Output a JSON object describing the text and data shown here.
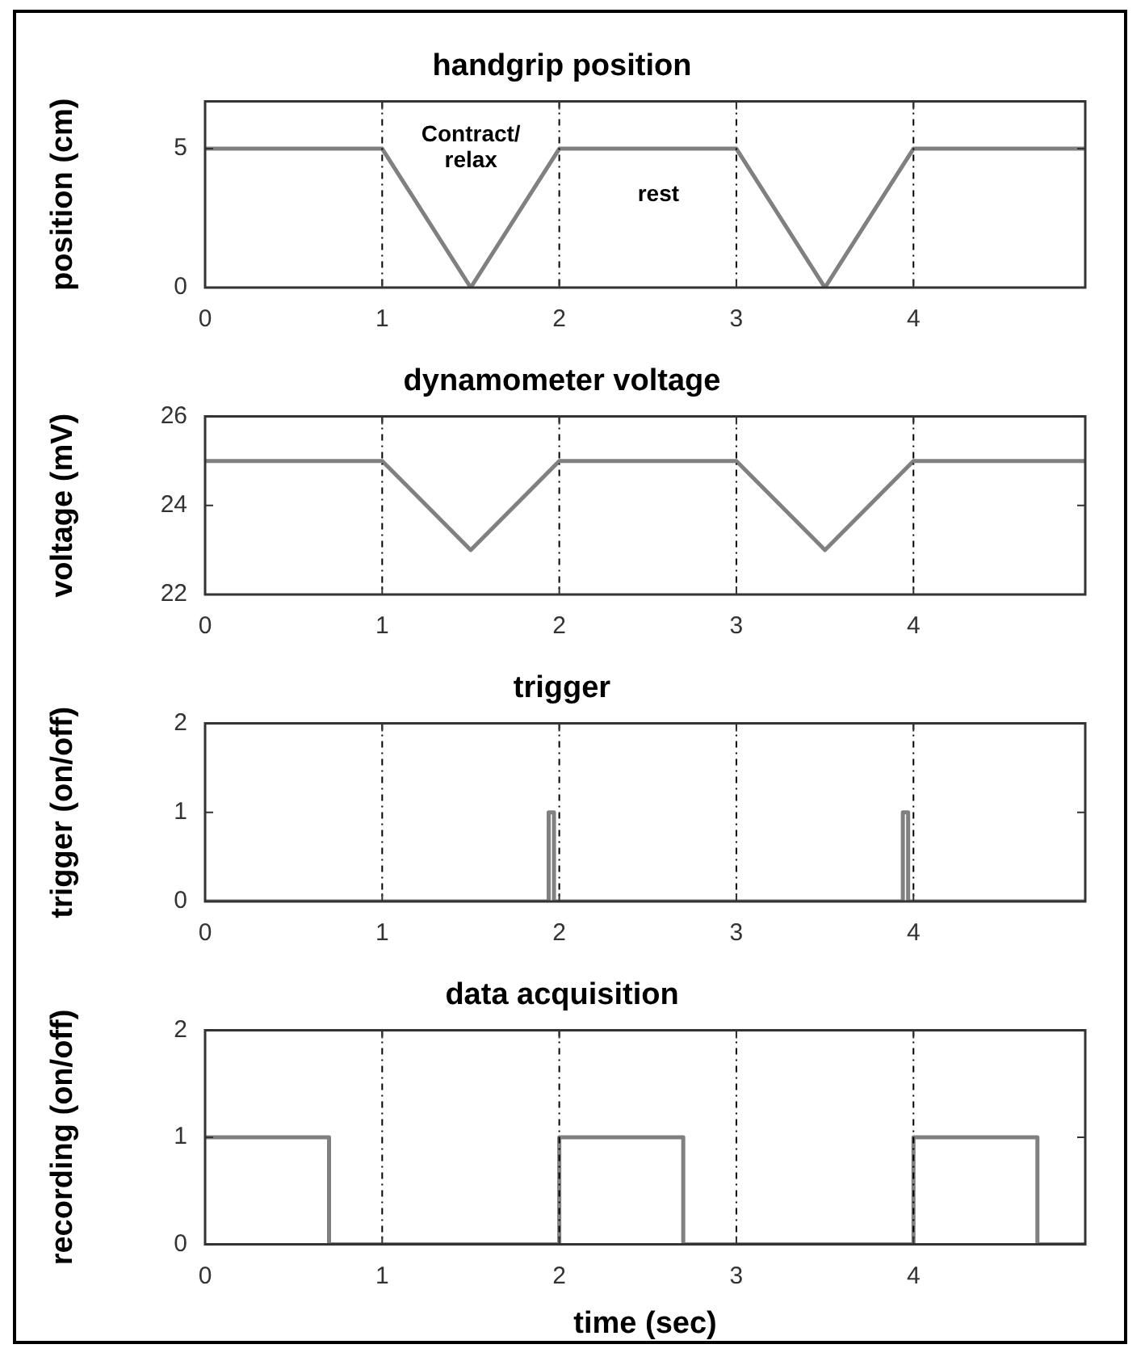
{
  "chart_data": [
    {
      "type": "line",
      "title": "handgrip position",
      "ylabel": "position (cm)",
      "xlim": [
        0,
        4.97
      ],
      "xticks": [
        0,
        1,
        2,
        3,
        4
      ],
      "ylim": [
        0,
        6.7
      ],
      "yticks": [
        0,
        5
      ],
      "grid": "x",
      "legend": false,
      "marker": "none",
      "series": [
        {
          "color": "#808080",
          "x": [
            0,
            1,
            1.5,
            2,
            3,
            3.5,
            4,
            4.97
          ],
          "values": [
            5,
            5,
            0,
            5,
            5,
            0,
            5,
            5
          ]
        }
      ],
      "annotations": [
        "Contract/\nrelax",
        "rest"
      ]
    },
    {
      "type": "line",
      "title": "dynamometer voltage",
      "ylabel": "voltage (mV)",
      "xlim": [
        0,
        4.97
      ],
      "xticks": [
        0,
        1,
        2,
        3,
        4
      ],
      "ylim": [
        22,
        26
      ],
      "yticks": [
        22,
        24,
        26
      ],
      "grid": "x",
      "legend": false,
      "marker": "none",
      "series": [
        {
          "color": "#808080",
          "x": [
            0,
            1,
            1.5,
            2,
            3,
            3.5,
            4,
            4.97
          ],
          "values": [
            25,
            25,
            23,
            25,
            25,
            23,
            25,
            25
          ]
        }
      ]
    },
    {
      "type": "line",
      "title": "trigger",
      "ylabel": "trigger (on/off)",
      "xlim": [
        0,
        4.97
      ],
      "xticks": [
        0,
        1,
        2,
        3,
        4
      ],
      "ylim": [
        0,
        2
      ],
      "yticks": [
        0,
        1,
        2
      ],
      "grid": "x",
      "legend": false,
      "marker": "none",
      "series": [
        {
          "color": "#808080",
          "x": [
            0,
            1.94,
            1.94,
            1.97,
            1.97,
            3.94,
            3.94,
            3.97,
            3.97,
            4.97
          ],
          "values": [
            0,
            0,
            1,
            1,
            0,
            0,
            1,
            1,
            0,
            0
          ]
        }
      ]
    },
    {
      "type": "line",
      "title": "data acquisition",
      "xlabel": "time (sec)",
      "ylabel": "recording (on/off)",
      "xlim": [
        0,
        4.97
      ],
      "xticks": [
        0,
        1,
        2,
        3,
        4
      ],
      "ylim": [
        0,
        2
      ],
      "yticks": [
        0,
        1,
        2
      ],
      "grid": "x",
      "legend": false,
      "marker": "none",
      "series": [
        {
          "color": "#808080",
          "x": [
            0,
            0.7,
            0.7,
            2,
            2,
            2.7,
            2.7,
            4,
            4,
            4.7,
            4.7,
            4.97
          ],
          "values": [
            1,
            1,
            0,
            0,
            1,
            1,
            0,
            0,
            1,
            1,
            0,
            0
          ]
        }
      ]
    }
  ]
}
